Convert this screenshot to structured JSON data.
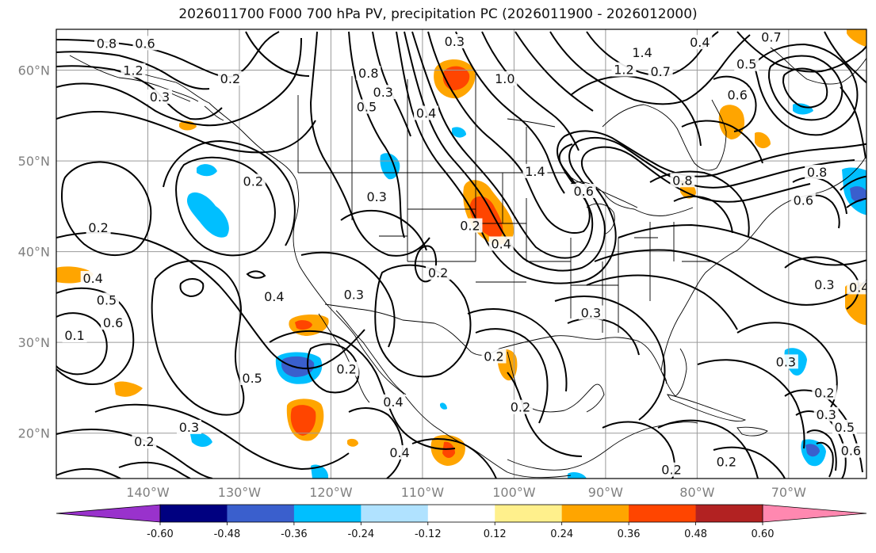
{
  "title": "2026011700 F000 700 hPa PV, precipitation PC (2026011900 - 2026012000)",
  "latitude_labels": [
    "60°N",
    "50°N",
    "40°N",
    "30°N",
    "20°N"
  ],
  "longitude_labels": [
    "140°W",
    "130°W",
    "120°W",
    "110°W",
    "100°W",
    "90°W",
    "80°W",
    "70°W"
  ],
  "colorbar": {
    "tick_labels": [
      "-0.60",
      "-0.48",
      "-0.36",
      "-0.24",
      "-0.12",
      "0.12",
      "0.24",
      "0.36",
      "0.48",
      "0.60"
    ],
    "colors": {
      "below_min": "#9932cc",
      "b1": "#000080",
      "b2": "#3a5fcd",
      "b3": "#00bfff",
      "b4": "#b0e2ff",
      "neutral": "#ffffff",
      "p1": "#fff08c",
      "p2": "#ffa500",
      "p3": "#ff4500",
      "p4": "#b22222",
      "above_max": "#ff88b0"
    }
  },
  "pv_contour_labels": [
    {
      "text": "0.8",
      "lon": -144.5,
      "lat": 62.9
    },
    {
      "text": "0.6",
      "lon": -140.3,
      "lat": 62.9
    },
    {
      "text": "1.2",
      "lon": -141.6,
      "lat": 59.9
    },
    {
      "text": "0.3",
      "lon": -138.7,
      "lat": 57.0
    },
    {
      "text": "0.2",
      "lon": -131.0,
      "lat": 59.0
    },
    {
      "text": "0.3",
      "lon": -114.3,
      "lat": 57.5
    },
    {
      "text": "0.8",
      "lon": -115.9,
      "lat": 59.6
    },
    {
      "text": "0.5",
      "lon": -116.1,
      "lat": 55.9
    },
    {
      "text": "0.3",
      "lon": -106.5,
      "lat": 63.1
    },
    {
      "text": "0.4",
      "lon": -109.6,
      "lat": 55.2
    },
    {
      "text": "1.0",
      "lon": -101.0,
      "lat": 59.0
    },
    {
      "text": "1.4",
      "lon": -86.0,
      "lat": 61.9
    },
    {
      "text": "1.2",
      "lon": -88.0,
      "lat": 60.0
    },
    {
      "text": "0.7",
      "lon": -84.0,
      "lat": 59.8
    },
    {
      "text": "0.4",
      "lon": -79.7,
      "lat": 63.0
    },
    {
      "text": "0.5",
      "lon": -74.6,
      "lat": 60.6
    },
    {
      "text": "0.6",
      "lon": -75.6,
      "lat": 57.2
    },
    {
      "text": "0.7",
      "lon": -71.9,
      "lat": 63.6
    },
    {
      "text": "1.4",
      "lon": -97.7,
      "lat": 48.8
    },
    {
      "text": "0.6",
      "lon": -92.4,
      "lat": 46.6
    },
    {
      "text": "0.8",
      "lon": -81.6,
      "lat": 47.8
    },
    {
      "text": "0.2",
      "lon": -128.5,
      "lat": 47.7
    },
    {
      "text": "0.3",
      "lon": -115.0,
      "lat": 46.0
    },
    {
      "text": "0.2",
      "lon": -104.8,
      "lat": 42.8
    },
    {
      "text": "0.4",
      "lon": -101.4,
      "lat": 40.8
    },
    {
      "text": "0.2",
      "lon": -145.4,
      "lat": 42.6
    },
    {
      "text": "0.4",
      "lon": -146.0,
      "lat": 37.0
    },
    {
      "text": "0.5",
      "lon": -144.5,
      "lat": 34.6
    },
    {
      "text": "0.6",
      "lon": -143.8,
      "lat": 32.1
    },
    {
      "text": "0.1",
      "lon": -148.0,
      "lat": 30.7
    },
    {
      "text": "0.4",
      "lon": -126.2,
      "lat": 35.0
    },
    {
      "text": "0.3",
      "lon": -117.5,
      "lat": 35.2
    },
    {
      "text": "0.2",
      "lon": -108.3,
      "lat": 37.6
    },
    {
      "text": "0.2",
      "lon": -118.3,
      "lat": 27.0
    },
    {
      "text": "0.5",
      "lon": -128.6,
      "lat": 26.0
    },
    {
      "text": "0.4",
      "lon": -113.2,
      "lat": 23.4
    },
    {
      "text": "0.4",
      "lon": -112.5,
      "lat": 17.8
    },
    {
      "text": "0.3",
      "lon": -135.5,
      "lat": 20.6
    },
    {
      "text": "0.2",
      "lon": -140.4,
      "lat": 19.0
    },
    {
      "text": "0.3",
      "lon": -91.6,
      "lat": 33.2
    },
    {
      "text": "0.2",
      "lon": -102.2,
      "lat": 28.4
    },
    {
      "text": "0.2",
      "lon": -99.3,
      "lat": 22.8
    },
    {
      "text": "0.2",
      "lon": -82.8,
      "lat": 15.9
    },
    {
      "text": "0.2",
      "lon": -76.8,
      "lat": 16.8
    },
    {
      "text": "0.3",
      "lon": -70.3,
      "lat": 27.8
    },
    {
      "text": "0.3",
      "lon": -66.1,
      "lat": 36.3
    },
    {
      "text": "0.4",
      "lon": -62.3,
      "lat": 36.0
    },
    {
      "text": "0.2",
      "lon": -66.1,
      "lat": 24.4
    },
    {
      "text": "0.3",
      "lon": -65.9,
      "lat": 22.0
    },
    {
      "text": "0.5",
      "lon": -63.9,
      "lat": 20.6
    },
    {
      "text": "0.6",
      "lon": -63.2,
      "lat": 18.0
    },
    {
      "text": "0.8",
      "lon": -66.9,
      "lat": 48.7
    },
    {
      "text": "0.6",
      "lon": -68.4,
      "lat": 45.6
    }
  ]
}
